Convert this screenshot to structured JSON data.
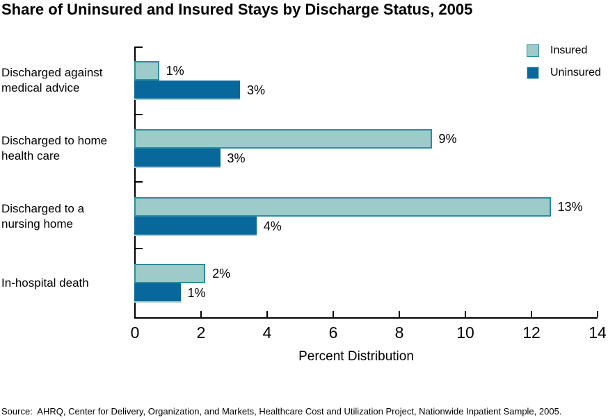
{
  "title": "Share of Uninsured and Insured Stays by Discharge Status, 2005",
  "source": "Source:  AHRQ, Center for Delivery, Organization, and Markets, Healthcare Cost and Utilization Project, Nationwide Inpatient Sample, 2005.",
  "colors": {
    "insured_fill": "#9CCBC9",
    "insured_border": "#2E8C9C",
    "uninsured_fill": "#09689B",
    "uninsured_underline": "#AAD6D3",
    "axis": "#000000"
  },
  "chart_data": {
    "type": "bar",
    "orientation": "horizontal",
    "title": "Share of Uninsured and Insured Stays by Discharge Status, 2005",
    "categories": [
      [
        "Discharged against",
        "medical advice"
      ],
      [
        "Discharged to home",
        "health care"
      ],
      [
        "Discharged to a",
        "nursing home"
      ],
      [
        "In-hospital death"
      ]
    ],
    "series": [
      {
        "name": "Insured",
        "color": "#9CCBC9",
        "swatch_border": "#2E8C9C",
        "values": [
          1,
          9,
          13,
          2
        ],
        "labels": [
          "1%",
          "9%",
          "13%",
          "2%"
        ],
        "drawn": [
          0.75,
          9.0,
          12.6,
          2.15
        ]
      },
      {
        "name": "Uninsured",
        "color": "#09689B",
        "swatch_border": "#AAD6D3",
        "values": [
          3,
          3,
          4,
          1
        ],
        "labels": [
          "3%",
          "3%",
          "4%",
          "1%"
        ],
        "drawn": [
          3.2,
          2.6,
          3.7,
          1.4
        ]
      }
    ],
    "xlabel": "Percent Distribution",
    "xlim": [
      0,
      14
    ],
    "xticks": [
      0,
      2,
      4,
      6,
      8,
      10,
      12,
      14
    ],
    "grid": false,
    "legend_position": "top-right"
  }
}
